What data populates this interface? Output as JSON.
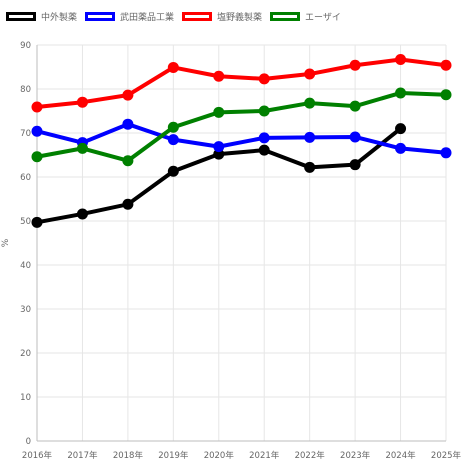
{
  "chart_data": {
    "type": "line",
    "title": "",
    "xlabel": "",
    "ylabel": "%",
    "ylim": [
      0,
      90
    ],
    "yticks": [
      "0",
      "10",
      "20",
      "30",
      "40",
      "50",
      "60",
      "70",
      "80",
      "90"
    ],
    "categories": [
      "2016年",
      "2017年",
      "2018年",
      "2019年",
      "2020年",
      "2021年",
      "2022年",
      "2023年",
      "2024年",
      "2025年"
    ],
    "grid": true,
    "legend_position": "top-left",
    "series": [
      {
        "name": "中外製薬",
        "color": "#000000",
        "values": [
          49.7,
          51.6,
          53.8,
          61.3,
          65.2,
          66.1,
          62.2,
          62.8,
          71.0,
          null
        ]
      },
      {
        "name": "武田薬品工業",
        "color": "#0000ff",
        "values": [
          70.4,
          67.8,
          72.0,
          68.5,
          66.9,
          68.9,
          69.0,
          69.1,
          66.5,
          65.5
        ]
      },
      {
        "name": "塩野義製薬",
        "color": "#ff0000",
        "values": [
          75.9,
          77.0,
          78.6,
          84.9,
          82.9,
          82.3,
          83.4,
          85.4,
          86.7,
          85.4
        ]
      },
      {
        "name": "エーザイ",
        "color": "#008000",
        "values": [
          64.6,
          66.5,
          63.7,
          71.3,
          74.7,
          75.0,
          76.8,
          76.1,
          79.1,
          78.7
        ]
      }
    ]
  }
}
